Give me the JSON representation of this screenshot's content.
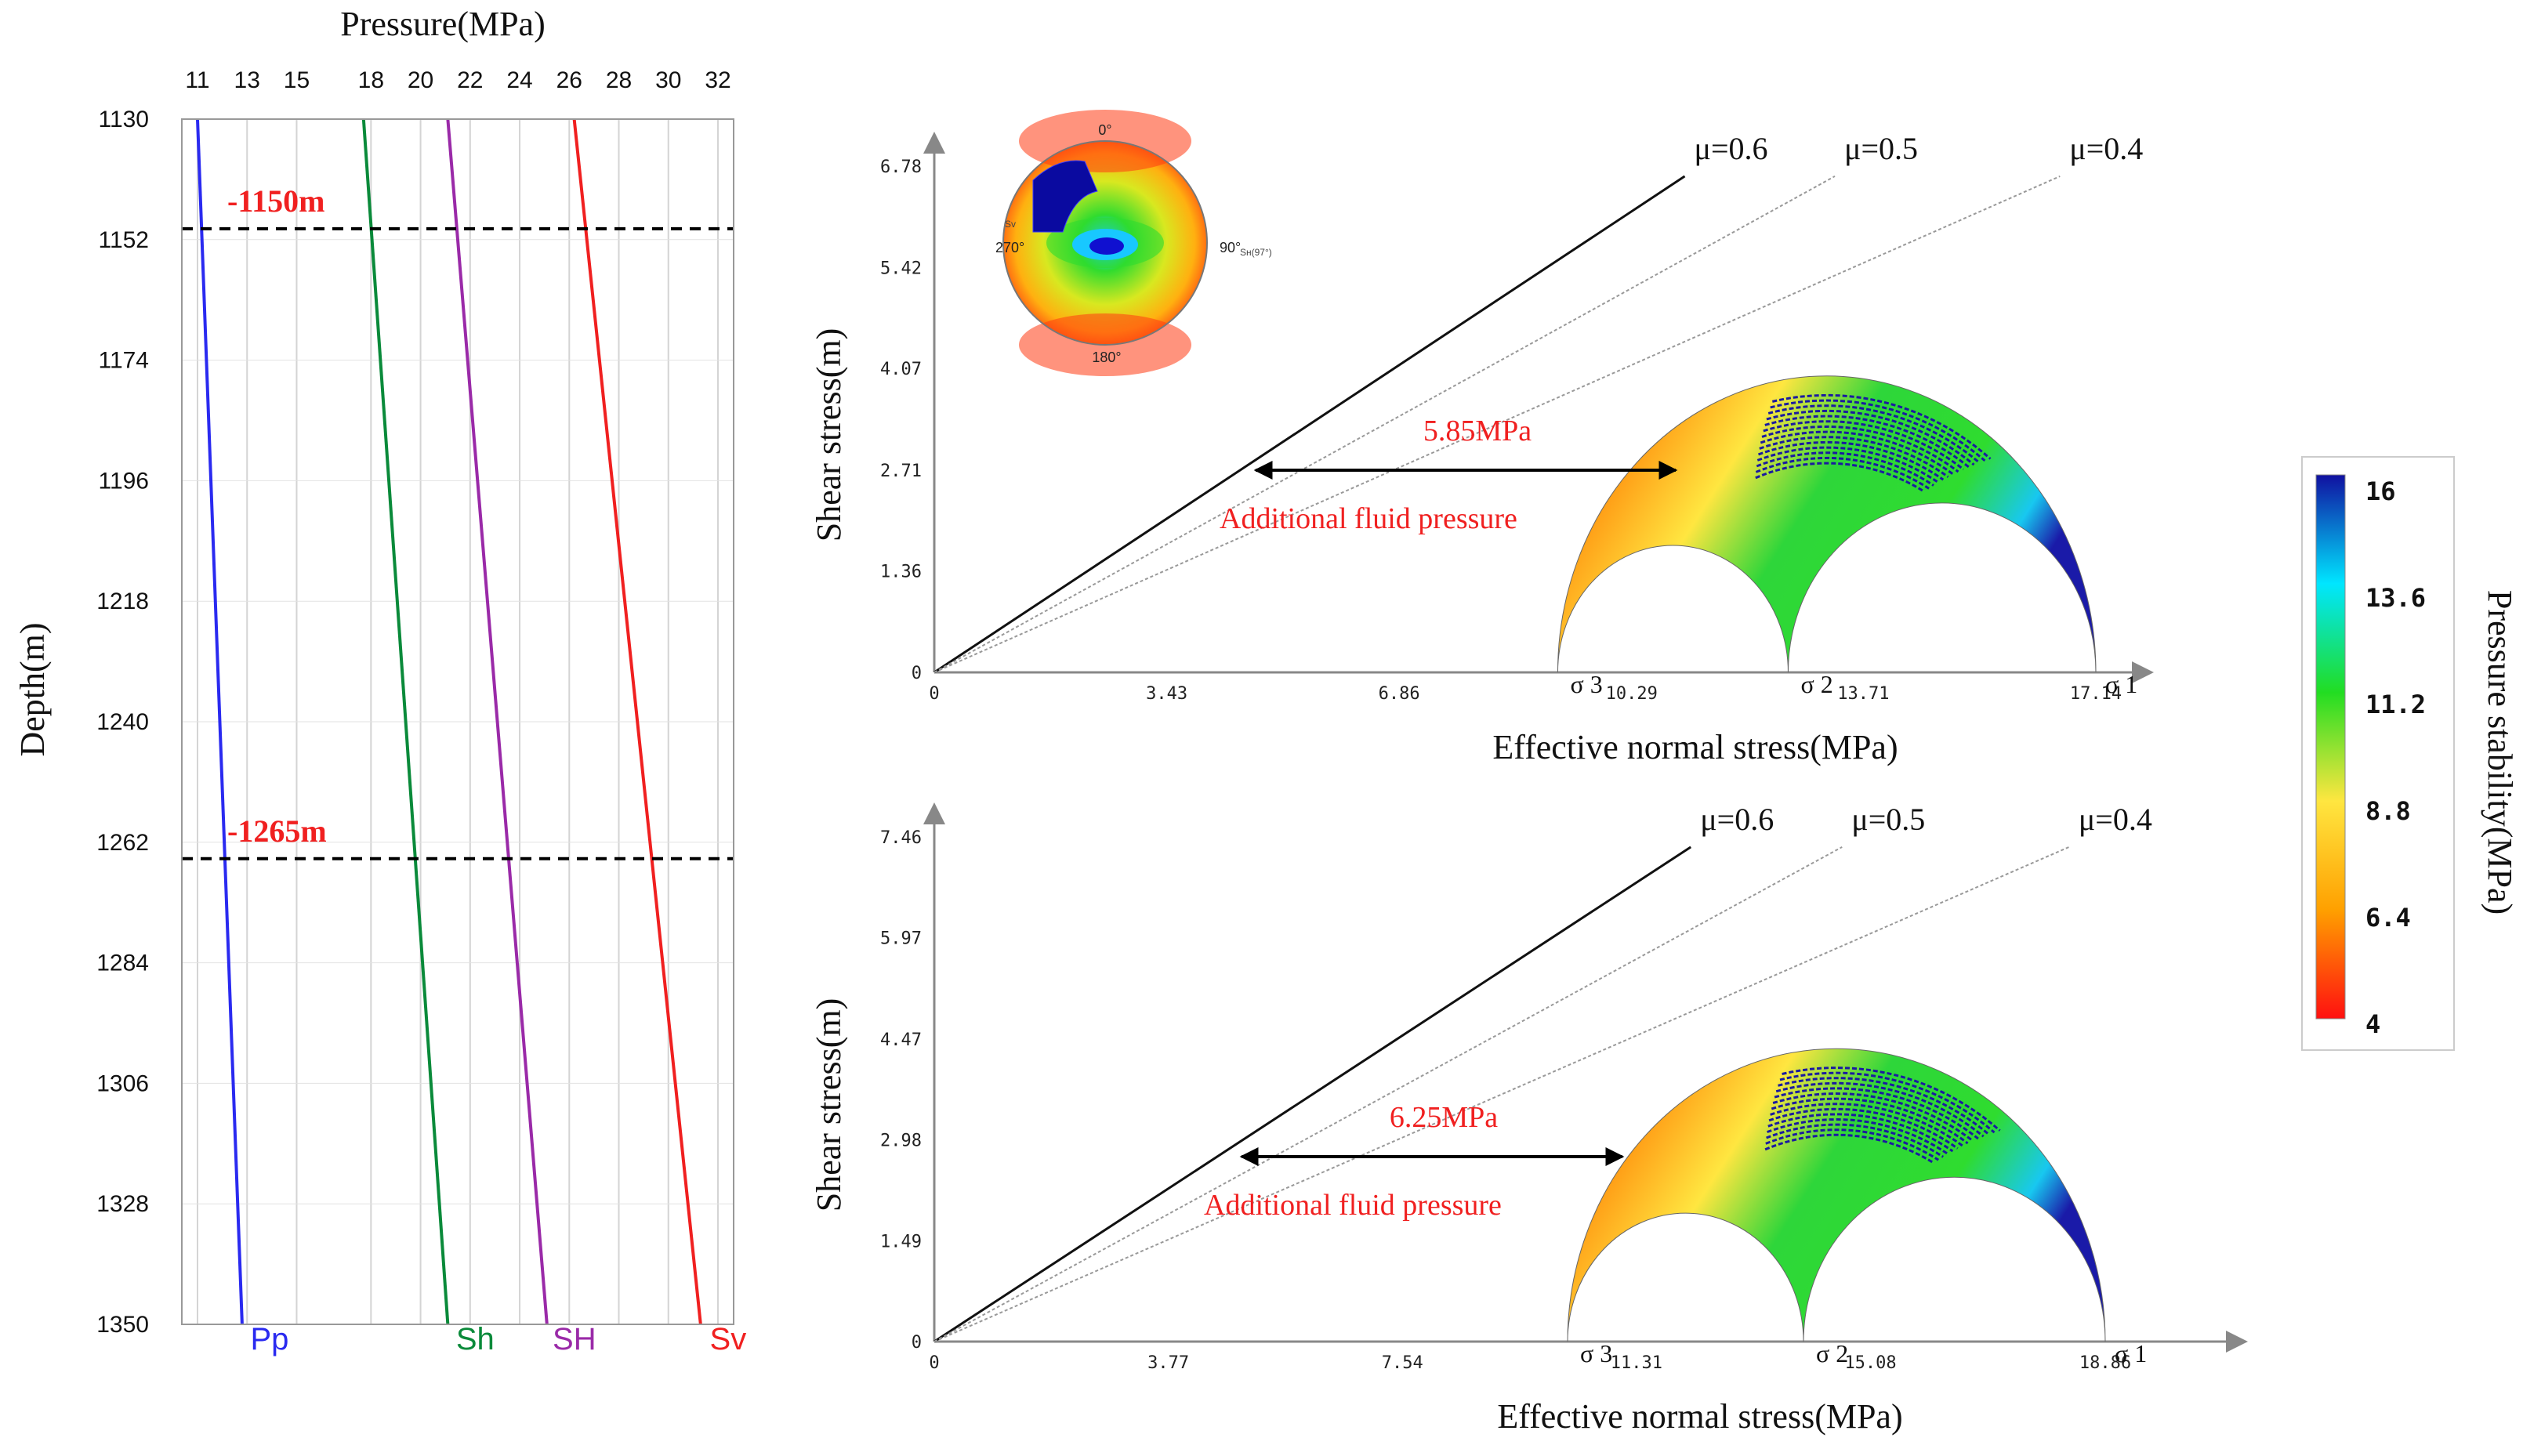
{
  "chart_data": [
    {
      "type": "line",
      "title": "",
      "xlabel": "Pressure(MPa)",
      "ylabel": "Depth(m)",
      "x_ticks": [
        "11",
        "13",
        "15",
        "18",
        "20",
        "22",
        "24",
        "26",
        "28",
        "30",
        "32"
      ],
      "y_ticks": [
        "1130",
        "1152",
        "1174",
        "1196",
        "1218",
        "1240",
        "1262",
        "1284",
        "1306",
        "1328",
        "1350"
      ],
      "ylim": [
        1130,
        1350
      ],
      "grid": true,
      "series": [
        {
          "name": "Pp",
          "color": "#2a2af0",
          "points": [
            [
              11.0,
              1130
            ],
            [
              12.8,
              1350
            ]
          ]
        },
        {
          "name": "Sh",
          "color": "#0a8a3a",
          "points": [
            [
              17.7,
              1130
            ],
            [
              21.1,
              1350
            ]
          ]
        },
        {
          "name": "SH",
          "color": "#9a2aa8",
          "points": [
            [
              21.1,
              1130
            ],
            [
              25.1,
              1350
            ]
          ]
        },
        {
          "name": "Sv",
          "color": "#f02020",
          "points": [
            [
              26.2,
              1130
            ],
            [
              31.3,
              1350
            ]
          ]
        }
      ],
      "annotations": [
        {
          "text": "-1150m",
          "depth": 1150,
          "color": "#f02020"
        },
        {
          "text": "-1265m",
          "depth": 1265,
          "color": "#f02020"
        }
      ]
    },
    {
      "type": "scatter",
      "title": "",
      "xlabel": "Effective normal stress(MPa)",
      "ylabel": "Shear stress(m)",
      "x_ticks": [
        "0",
        "3.43",
        "6.86",
        "10.29",
        "13.71",
        "17.14"
      ],
      "y_ticks": [
        "0",
        "1.36",
        "2.71",
        "4.07",
        "5.42",
        "6.78"
      ],
      "xlim": [
        0,
        17.14
      ],
      "ylim": [
        0,
        6.78
      ],
      "principal_labels": [
        "σ 3",
        "σ 2",
        "σ 1"
      ],
      "principal_stresses": [
        9.2,
        12.6,
        17.14
      ],
      "friction_lines": [
        {
          "label": "μ=0.6",
          "mu": 0.6
        },
        {
          "label": "μ=0.5",
          "mu": 0.5
        },
        {
          "label": "μ=0.4",
          "mu": 0.4
        }
      ],
      "arrow_annotation": "5.85MPa",
      "arrow_caption": "Additional fluid pressure",
      "stereonet_labels": {
        "top": "0°",
        "bottom": "180°",
        "left": "270°",
        "right": "90°",
        "right_small": "Sн(97°)",
        "left_small": "Sv"
      }
    },
    {
      "type": "scatter",
      "title": "",
      "xlabel": "Effective normal stress(MPa)",
      "ylabel": "Shear stress(m)",
      "x_ticks": [
        "0",
        "3.77",
        "7.54",
        "11.31",
        "15.08",
        "18.86"
      ],
      "y_ticks": [
        "0",
        "1.49",
        "2.98",
        "4.47",
        "5.97",
        "7.46"
      ],
      "xlim": [
        0,
        18.86
      ],
      "ylim": [
        0,
        7.46
      ],
      "principal_labels": [
        "σ 3",
        "σ 2",
        "σ 1"
      ],
      "principal_stresses": [
        10.2,
        14.0,
        18.86
      ],
      "friction_lines": [
        {
          "label": "μ=0.6",
          "mu": 0.6
        },
        {
          "label": "μ=0.5",
          "mu": 0.5
        },
        {
          "label": "μ=0.4",
          "mu": 0.4
        }
      ],
      "arrow_annotation": "6.25MPa",
      "arrow_caption": "Additional fluid pressure"
    },
    {
      "type": "heatmap",
      "title": "",
      "colorbar_label": "Pressure stability(MPa)",
      "colorbar_ticks": [
        "16",
        "13.6",
        "11.2",
        "8.8",
        "6.4",
        "4"
      ],
      "colorbar_range": [
        4,
        16
      ],
      "colors": [
        "#ff1010",
        "#ffa000",
        "#ffe640",
        "#22dd22",
        "#00e6ff",
        "#1010a0"
      ]
    }
  ]
}
